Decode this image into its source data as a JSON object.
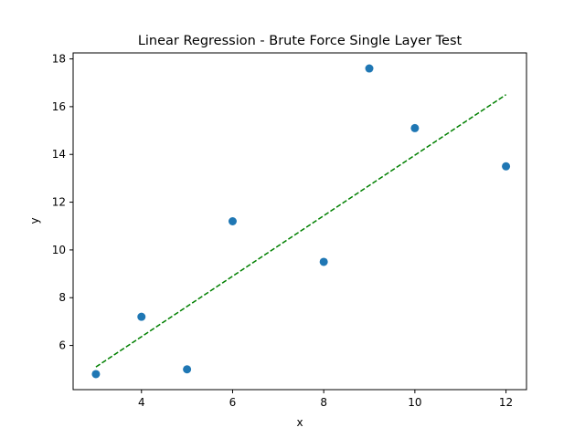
{
  "chart_data": {
    "type": "scatter",
    "title": "Linear Regression - Brute Force Single Layer Test",
    "xlabel": "x",
    "ylabel": "y",
    "xlim": [
      2.5,
      12.45
    ],
    "ylim": [
      4.15,
      18.25
    ],
    "xticks": [
      4,
      6,
      8,
      10,
      12
    ],
    "yticks": [
      6,
      8,
      10,
      12,
      14,
      16,
      18
    ],
    "grid": false,
    "series": [
      {
        "kind": "points",
        "color": "#1f77b4",
        "x": [
          3,
          4,
          5,
          6,
          8,
          9,
          10,
          12
        ],
        "y": [
          4.8,
          7.2,
          5.0,
          11.2,
          9.5,
          17.6,
          15.1,
          13.5
        ]
      },
      {
        "kind": "line",
        "style": "dashed",
        "color": "#008000",
        "x": [
          3,
          12
        ],
        "y": [
          5.1,
          16.5
        ]
      }
    ]
  }
}
